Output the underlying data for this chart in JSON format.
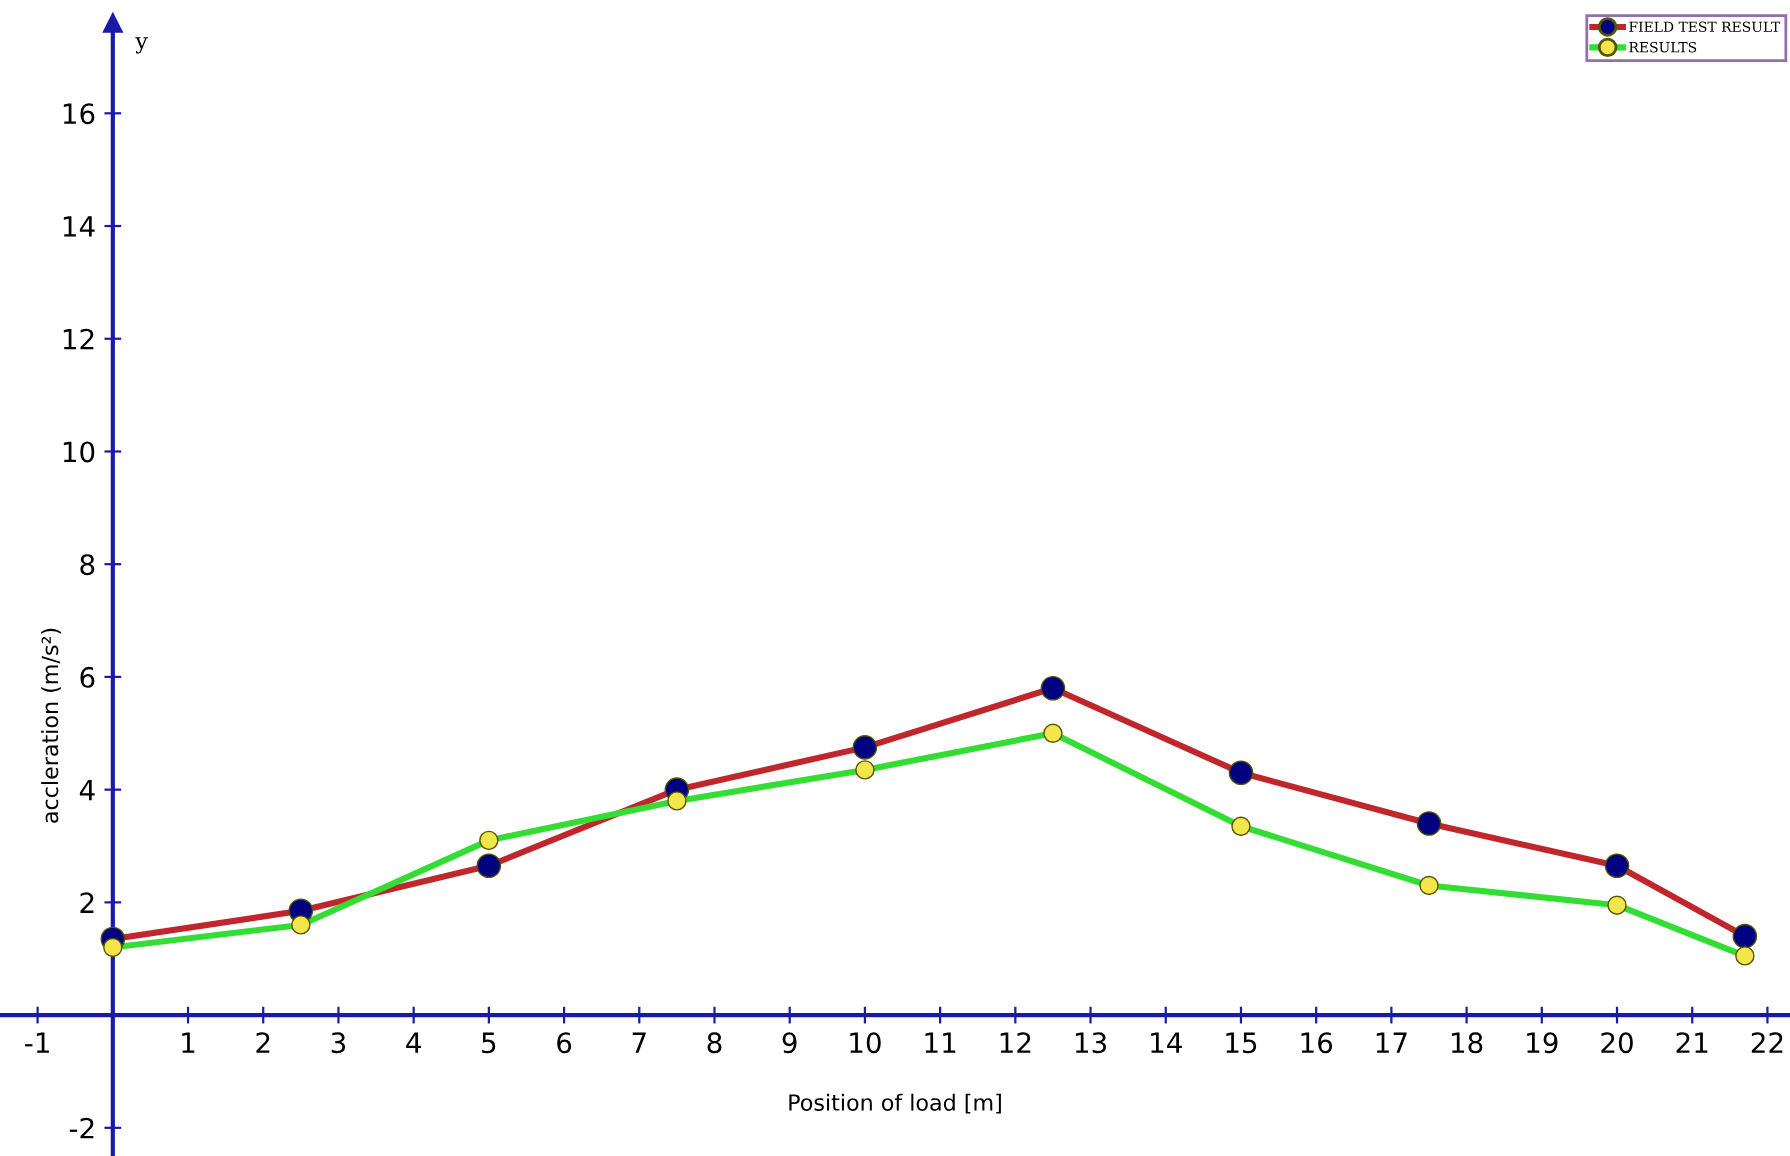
{
  "chart_data": {
    "type": "line",
    "xlabel": "Position of load [m]",
    "ylabel": "accleration (m/s²)",
    "annotations": [
      "y"
    ],
    "x": [
      0,
      2.5,
      5,
      7.5,
      10,
      12.5,
      15,
      17.5,
      20,
      21.7
    ],
    "series": [
      {
        "name": "FIELD TEST RESULT",
        "color": "#c0272d",
        "colors": [
          "#000080",
          "#000080",
          "#000080",
          "#000080",
          "#000080",
          "#000080",
          "#000080",
          "#000080",
          "#000080",
          "#000080"
        ],
        "values": [
          1.35,
          1.85,
          2.65,
          4.0,
          4.75,
          5.8,
          4.3,
          3.4,
          2.65,
          1.4
        ]
      },
      {
        "name": "RESULTS",
        "color": "#33dd33",
        "colors": [
          "#f2e64a",
          "#f2e64a",
          "#f2e64a",
          "#f2e64a",
          "#f2e64a",
          "#f2e64a",
          "#f2e64a",
          "#f2e64a",
          "#f2e64a",
          "#f2e64a"
        ],
        "values": [
          1.2,
          1.6,
          3.1,
          3.8,
          4.35,
          5.0,
          3.35,
          2.3,
          1.95,
          1.05
        ]
      }
    ],
    "xlim": [
      -1.5,
      22.3
    ],
    "ylim": [
      -2.5,
      17.6
    ],
    "xticks": [
      -1,
      1,
      2,
      3,
      4,
      5,
      6,
      7,
      8,
      9,
      10,
      11,
      12,
      13,
      14,
      15,
      16,
      17,
      18,
      19,
      20,
      21,
      22
    ],
    "yticks": [
      -2,
      2,
      4,
      6,
      8,
      10,
      12,
      14,
      16
    ],
    "marker": "circle",
    "line_style": "solid",
    "grid": false,
    "legend": "top right"
  }
}
